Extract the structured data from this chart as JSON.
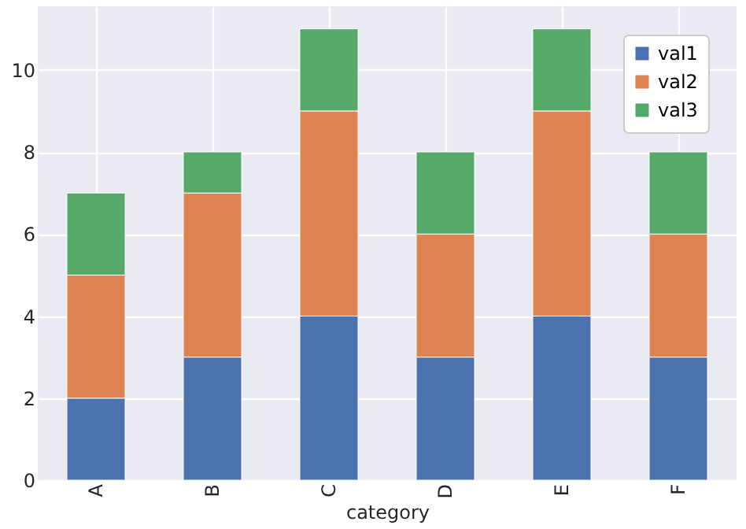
{
  "chart_data": {
    "type": "bar",
    "stacked": true,
    "xlabel": "category",
    "categories": [
      "A",
      "B",
      "C",
      "D",
      "E",
      "F"
    ],
    "series": [
      {
        "name": "val1",
        "color": "#4c72b0",
        "values": [
          2,
          3,
          4,
          3,
          4,
          3
        ]
      },
      {
        "name": "val2",
        "color": "#dd8452",
        "values": [
          3,
          4,
          5,
          3,
          5,
          3
        ]
      },
      {
        "name": "val3",
        "color": "#55a868",
        "values": [
          2,
          1,
          2,
          2,
          2,
          2
        ]
      }
    ],
    "ylim": [
      0,
      11.55
    ],
    "yticks": [
      0,
      2,
      4,
      6,
      8,
      10
    ],
    "grid": true,
    "legend": "top right"
  }
}
